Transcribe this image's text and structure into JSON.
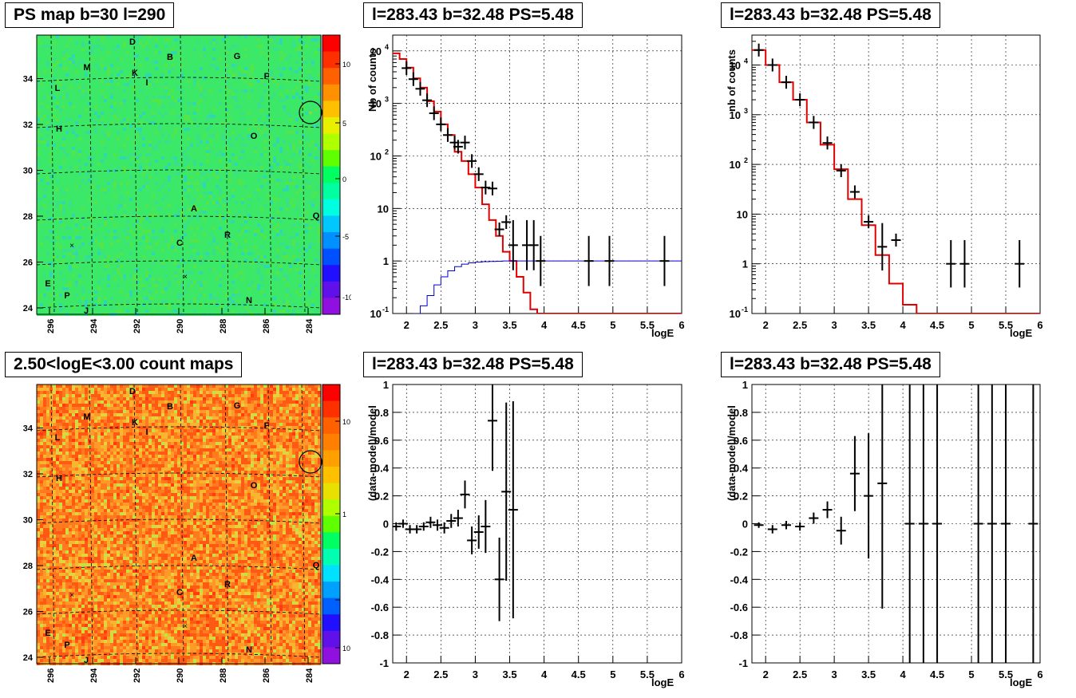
{
  "titles": {
    "ps_map": "PS map b=30 l=290",
    "spec_a": "l=283.43 b=32.48 PS=5.48",
    "spec_b": "l=283.43 b=32.48 PS=5.48",
    "count_map": "2.50<logE<3.00 count maps",
    "res_a": "l=283.43 b=32.48 PS=5.48",
    "res_b": "l=283.43 b=32.48 PS=5.48"
  },
  "map_axes": {
    "x_ticks": [
      "296",
      "294",
      "292",
      "290",
      "288",
      "286",
      "284"
    ],
    "y_ticks": [
      "24",
      "26",
      "28",
      "30",
      "32",
      "34"
    ]
  },
  "map_labels": [
    "D",
    "B",
    "G",
    "M",
    "K",
    "I",
    "F",
    "L",
    "H",
    "O",
    "A",
    "Q",
    "R",
    "C",
    "E",
    "P",
    "N",
    "J"
  ],
  "ps_colorbar_ticks": [
    "10",
    "5",
    "0",
    "-5",
    "-10"
  ],
  "count_colorbar_ticks": [
    "10",
    "1",
    "10",
    "-1"
  ],
  "colors": {
    "model": "#e00000",
    "background": "#0000c8",
    "data": "#000000"
  },
  "chart_data": [
    {
      "type": "line",
      "title": "l=283.43 b=32.48 PS=5.48",
      "xlabel": "logE",
      "ylabel": "Nb of counts",
      "xlim": [
        1.8,
        6
      ],
      "ylim": [
        0.1,
        20000
      ],
      "log_y": true,
      "x_ticks": [
        "2",
        "2.5",
        "3",
        "3.5",
        "4",
        "4.5",
        "5",
        "5.5",
        "6"
      ],
      "y_ticks": [
        "10^-1",
        "1",
        "10",
        "10^2",
        "10^3",
        "10^4"
      ],
      "series": [
        {
          "name": "model",
          "x": [
            1.8,
            1.9,
            2.0,
            2.1,
            2.2,
            2.3,
            2.4,
            2.5,
            2.6,
            2.7,
            2.8,
            2.9,
            3.0,
            3.1,
            3.2,
            3.3,
            3.4,
            3.5,
            3.6,
            3.7,
            3.8,
            3.9,
            4.0,
            4.1
          ],
          "values": [
            9000,
            7000,
            4800,
            3000,
            2000,
            1100,
            700,
            400,
            250,
            120,
            80,
            45,
            25,
            12,
            6,
            3,
            1.5,
            1.0,
            0.5,
            0.25,
            0.12,
            0.1,
            0.1,
            0.1
          ]
        },
        {
          "name": "background",
          "x": [
            2.1,
            2.2,
            2.3,
            2.4,
            2.5,
            2.6,
            2.7,
            2.8,
            2.9,
            3.0,
            3.1,
            3.2,
            3.3,
            3.4,
            3.5,
            4.0,
            5.0,
            6.0
          ],
          "values": [
            0.1,
            0.14,
            0.22,
            0.35,
            0.5,
            0.65,
            0.78,
            0.87,
            0.92,
            0.95,
            0.97,
            0.98,
            0.99,
            1.0,
            1.0,
            1.0,
            1.0,
            1.0
          ]
        },
        {
          "name": "data",
          "x": [
            2.0,
            2.1,
            2.2,
            2.3,
            2.4,
            2.5,
            2.6,
            2.7,
            2.75,
            2.85,
            2.95,
            3.05,
            3.15,
            3.25,
            3.35,
            3.45,
            3.55,
            3.75,
            3.85,
            3.95,
            4.65,
            4.95,
            5.75
          ],
          "values": [
            4700,
            2900,
            1900,
            1150,
            650,
            400,
            250,
            180,
            150,
            180,
            80,
            45,
            25,
            24,
            4,
            5.5,
            2,
            2,
            2,
            1,
            1,
            1,
            1
          ]
        }
      ]
    },
    {
      "type": "line",
      "title": "l=283.43 b=32.48 PS=5.48",
      "xlabel": "logE",
      "ylabel": "nb of counts",
      "xlim": [
        1.8,
        6
      ],
      "ylim": [
        0.1,
        40000
      ],
      "log_y": true,
      "x_ticks": [
        "2",
        "2.5",
        "3",
        "3.5",
        "4",
        "4.5",
        "5",
        "5.5",
        "6"
      ],
      "y_ticks": [
        "10^-1",
        "1",
        "10",
        "10^2",
        "10^3",
        "10^4"
      ],
      "series": [
        {
          "name": "model",
          "x": [
            1.8,
            2.0,
            2.2,
            2.4,
            2.6,
            2.8,
            3.0,
            3.2,
            3.4,
            3.6,
            3.8,
            4.0,
            4.2,
            4.4
          ],
          "values": [
            20000,
            10000,
            4500,
            2000,
            700,
            250,
            80,
            20,
            6,
            1.5,
            0.4,
            0.15,
            0.1,
            0.1
          ]
        },
        {
          "name": "data",
          "x": [
            1.9,
            2.1,
            2.3,
            2.5,
            2.7,
            2.9,
            3.1,
            3.3,
            3.5,
            3.7,
            3.9,
            4.7,
            4.9,
            5.7
          ],
          "values": [
            20000,
            10000,
            4500,
            2000,
            700,
            270,
            75,
            28,
            7,
            2.2,
            3,
            1,
            1,
            1
          ]
        }
      ]
    },
    {
      "type": "scatter",
      "title": "l=283.43 b=32.48 PS=5.48",
      "xlabel": "logE",
      "ylabel": "(data-model)/model",
      "xlim": [
        1.8,
        6
      ],
      "ylim": [
        -1,
        1
      ],
      "x_ticks": [
        "2",
        "2.5",
        "3",
        "3.5",
        "4",
        "4.5",
        "5",
        "5.5",
        "6"
      ],
      "y_ticks": [
        "1",
        "0.8",
        "0.6",
        "0.4",
        "0.2",
        "0",
        "-0.2",
        "-0.4",
        "-0.6",
        "-0.8",
        "-1"
      ],
      "series": [
        {
          "name": "",
          "x": [
            1.85,
            1.95,
            2.05,
            2.15,
            2.25,
            2.35,
            2.45,
            2.55,
            2.65,
            2.75,
            2.85,
            2.95,
            3.05,
            3.15,
            3.25,
            3.35,
            3.45,
            3.55
          ],
          "values": [
            -0.02,
            0.0,
            -0.04,
            -0.04,
            -0.02,
            0.01,
            -0.01,
            -0.03,
            0.02,
            0.04,
            0.21,
            -0.12,
            -0.06,
            -0.02,
            0.74,
            -0.4,
            0.23,
            0.1
          ],
          "errors": [
            0.03,
            0.03,
            0.03,
            0.03,
            0.03,
            0.04,
            0.04,
            0.04,
            0.05,
            0.06,
            0.1,
            0.1,
            0.12,
            0.19,
            0.36,
            0.3,
            0.64,
            0.78
          ]
        }
      ]
    },
    {
      "type": "scatter",
      "title": "l=283.43 b=32.48 PS=5.48",
      "xlabel": "logE",
      "ylabel": "(data-model)/model",
      "xlim": [
        1.8,
        6
      ],
      "ylim": [
        -1,
        1
      ],
      "x_ticks": [
        "2",
        "2.5",
        "3",
        "3.5",
        "4",
        "4.5",
        "5",
        "5.5",
        "6"
      ],
      "y_ticks": [
        "1",
        "0.8",
        "0.6",
        "0.4",
        "0.2",
        "0",
        "-0.2",
        "-0.4",
        "-0.6",
        "-0.8",
        "-1"
      ],
      "series": [
        {
          "name": "",
          "x": [
            1.9,
            2.1,
            2.3,
            2.5,
            2.7,
            2.9,
            3.1,
            3.3,
            3.5,
            3.7,
            4.1,
            4.3,
            4.5,
            5.1,
            5.3,
            5.5,
            5.9
          ],
          "values": [
            -0.01,
            -0.04,
            -0.01,
            -0.02,
            0.04,
            0.1,
            -0.05,
            0.36,
            0.2,
            0.29,
            0,
            0,
            0,
            0,
            0,
            0,
            0
          ],
          "errors": [
            0.02,
            0.03,
            0.03,
            0.03,
            0.04,
            0.06,
            0.1,
            0.27,
            0.45,
            0.9,
            1.5,
            1.5,
            1.5,
            1.5,
            1.5,
            1.5,
            1.5
          ]
        }
      ]
    }
  ]
}
